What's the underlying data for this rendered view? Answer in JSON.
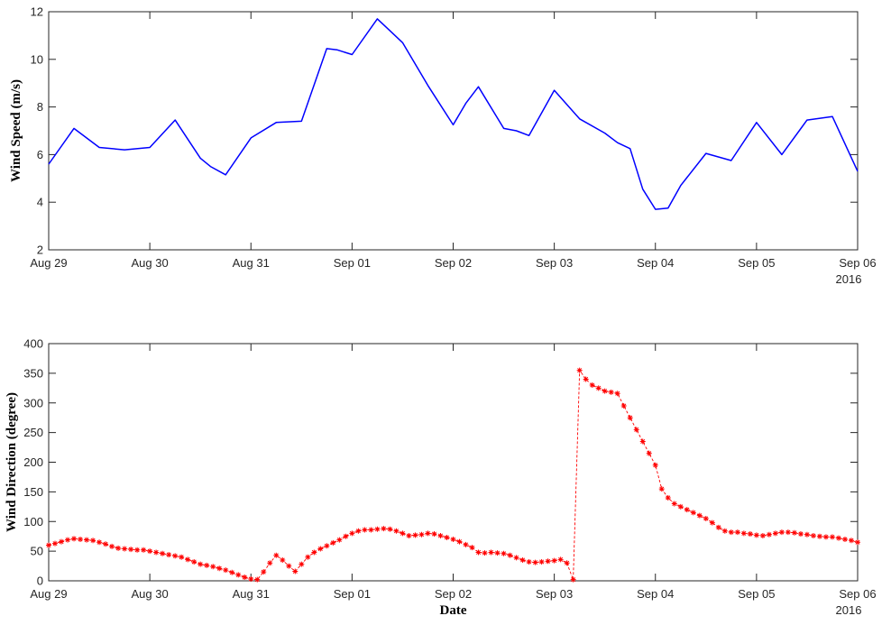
{
  "chart_data": [
    {
      "type": "line",
      "ylabel": "Wind Speed (m/s)",
      "xlabel": "",
      "year_label": "2016",
      "ylim": [
        2,
        12
      ],
      "yticks": [
        2,
        4,
        6,
        8,
        10,
        12
      ],
      "xlim": [
        0,
        8
      ],
      "xticks": [
        {
          "x": 0,
          "label": "Aug 29"
        },
        {
          "x": 1,
          "label": "Aug 30"
        },
        {
          "x": 2,
          "label": "Aug 31"
        },
        {
          "x": 3,
          "label": "Sep 01"
        },
        {
          "x": 4,
          "label": "Sep 02"
        },
        {
          "x": 5,
          "label": "Sep 03"
        },
        {
          "x": 6,
          "label": "Sep 04"
        },
        {
          "x": 7,
          "label": "Sep 05"
        },
        {
          "x": 8,
          "label": "Sep 06"
        }
      ],
      "grid": false,
      "series": [
        {
          "color": "#0000ff",
          "marker": "none",
          "x": [
            0,
            0.25,
            0.5,
            0.75,
            1.0,
            1.25,
            1.5,
            1.6,
            1.75,
            2.0,
            2.25,
            2.5,
            2.75,
            2.85,
            3.0,
            3.25,
            3.375,
            3.5,
            3.75,
            4.0,
            4.125,
            4.25,
            4.5,
            4.625,
            4.75,
            5.0,
            5.25,
            5.5,
            5.625,
            5.75,
            5.875,
            6.0,
            6.125,
            6.25,
            6.5,
            6.75,
            7.0,
            7.25,
            7.5,
            7.75,
            8.0
          ],
          "y": [
            5.6,
            7.1,
            6.3,
            6.2,
            6.3,
            7.45,
            5.85,
            5.5,
            5.15,
            6.7,
            7.35,
            7.4,
            10.45,
            10.4,
            10.2,
            11.7,
            11.2,
            10.7,
            8.9,
            7.25,
            8.15,
            8.85,
            7.1,
            7.0,
            6.8,
            8.7,
            7.5,
            6.9,
            6.5,
            6.25,
            4.55,
            3.7,
            3.75,
            4.7,
            6.05,
            5.75,
            7.35,
            6.0,
            7.45,
            7.6,
            5.3
          ]
        }
      ]
    },
    {
      "type": "line",
      "ylabel": "Wind Direction (degree)",
      "xlabel": "Date",
      "year_label": "2016",
      "ylim": [
        0,
        400
      ],
      "yticks": [
        0,
        50,
        100,
        150,
        200,
        250,
        300,
        350,
        400
      ],
      "xlim": [
        0,
        8
      ],
      "xticks": [
        {
          "x": 0,
          "label": "Aug 29"
        },
        {
          "x": 1,
          "label": "Aug 30"
        },
        {
          "x": 2,
          "label": "Aug 31"
        },
        {
          "x": 3,
          "label": "Sep 01"
        },
        {
          "x": 4,
          "label": "Sep 02"
        },
        {
          "x": 5,
          "label": "Sep 03"
        },
        {
          "x": 6,
          "label": "Sep 04"
        },
        {
          "x": 7,
          "label": "Sep 05"
        },
        {
          "x": 8,
          "label": "Sep 06"
        }
      ],
      "grid": false,
      "series": [
        {
          "color": "#ff0000",
          "marker": "asterisk",
          "line_style": "dashed",
          "x": [
            0,
            0.0625,
            0.125,
            0.1875,
            0.25,
            0.3125,
            0.375,
            0.4375,
            0.5,
            0.5625,
            0.625,
            0.6875,
            0.75,
            0.8125,
            0.875,
            0.9375,
            1.0,
            1.0625,
            1.125,
            1.1875,
            1.25,
            1.3125,
            1.375,
            1.4375,
            1.5,
            1.5625,
            1.625,
            1.6875,
            1.75,
            1.8125,
            1.875,
            1.9375,
            2.0,
            2.0625,
            2.125,
            2.1875,
            2.25,
            2.3125,
            2.375,
            2.4375,
            2.5,
            2.5625,
            2.625,
            2.6875,
            2.75,
            2.8125,
            2.875,
            2.9375,
            3.0,
            3.0625,
            3.125,
            3.1875,
            3.25,
            3.3125,
            3.375,
            3.4375,
            3.5,
            3.5625,
            3.625,
            3.6875,
            3.75,
            3.8125,
            3.875,
            3.9375,
            4.0,
            4.0625,
            4.125,
            4.1875,
            4.25,
            4.3125,
            4.375,
            4.4375,
            4.5,
            4.5625,
            4.625,
            4.6875,
            4.75,
            4.8125,
            4.875,
            4.9375,
            5.0,
            5.0625,
            5.125,
            5.1875,
            5.25,
            5.3125,
            5.375,
            5.4375,
            5.5,
            5.5625,
            5.625,
            5.6875,
            5.75,
            5.8125,
            5.875,
            5.9375,
            6.0,
            6.0625,
            6.125,
            6.1875,
            6.25,
            6.3125,
            6.375,
            6.4375,
            6.5,
            6.5625,
            6.625,
            6.6875,
            6.75,
            6.8125,
            6.875,
            6.9375,
            7.0,
            7.0625,
            7.125,
            7.1875,
            7.25,
            7.3125,
            7.375,
            7.4375,
            7.5,
            7.5625,
            7.625,
            7.6875,
            7.75,
            7.8125,
            7.875,
            7.9375,
            8.0
          ],
          "y": [
            60,
            63,
            66,
            69,
            71,
            70,
            69,
            68,
            65,
            62,
            58,
            55,
            54,
            53,
            52,
            52,
            50,
            48,
            46,
            44,
            42,
            40,
            36,
            32,
            28,
            26,
            24,
            21,
            18,
            14,
            10,
            6,
            3,
            2,
            15,
            30,
            43,
            35,
            25,
            16,
            28,
            40,
            48,
            54,
            59,
            64,
            69,
            75,
            80,
            84,
            86,
            86,
            87,
            88,
            87,
            84,
            80,
            76,
            77,
            78,
            80,
            79,
            76,
            73,
            70,
            66,
            61,
            56,
            48,
            47,
            48,
            47,
            46,
            43,
            39,
            35,
            32,
            31,
            32,
            33,
            34,
            36,
            30,
            2,
            355,
            340,
            330,
            325,
            320,
            318,
            316,
            295,
            275,
            255,
            235,
            215,
            195,
            155,
            140,
            130,
            125,
            120,
            115,
            110,
            105,
            98,
            90,
            84,
            82,
            82,
            80,
            79,
            77,
            76,
            78,
            80,
            82,
            82,
            81,
            79,
            78,
            76,
            75,
            74,
            74,
            72,
            70,
            68,
            65
          ]
        }
      ]
    }
  ]
}
